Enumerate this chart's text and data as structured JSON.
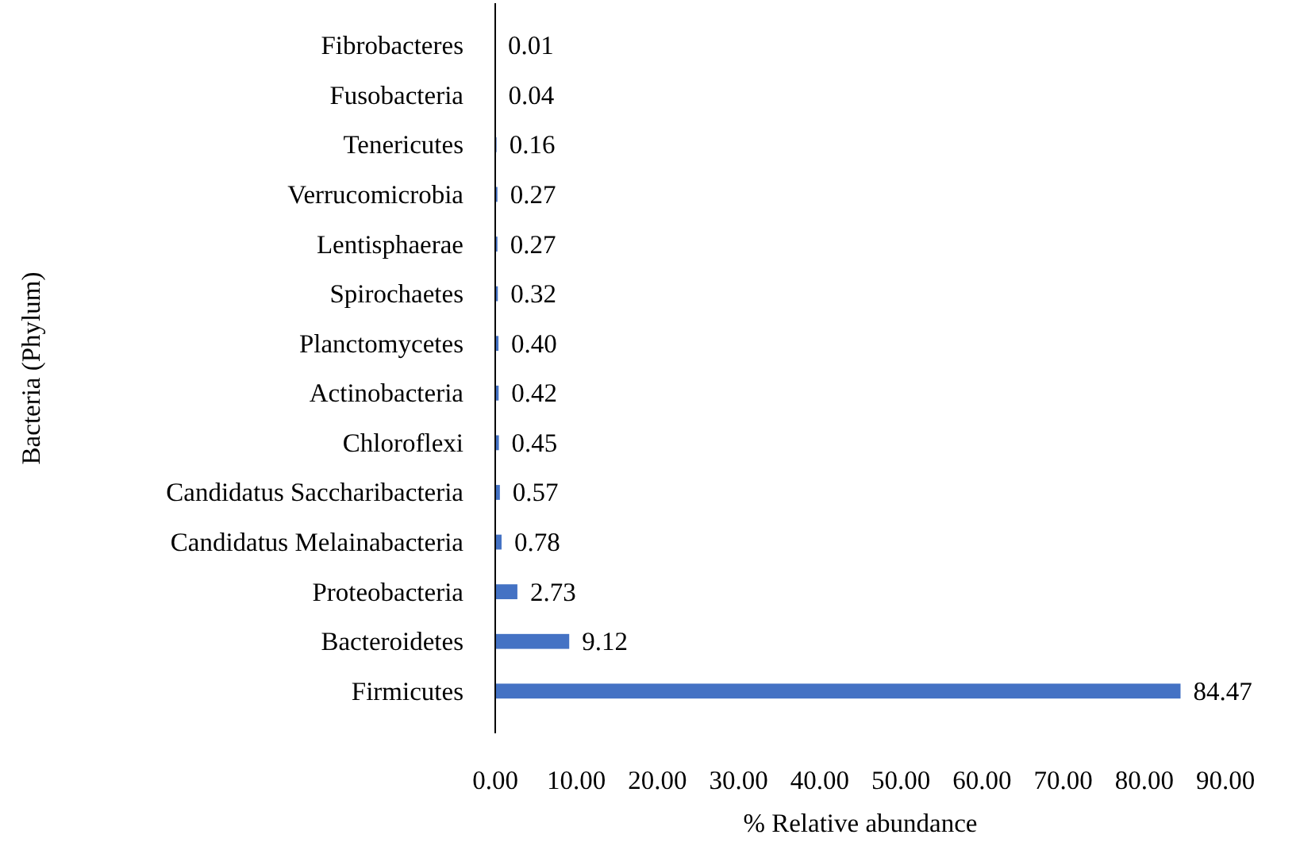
{
  "chart_data": {
    "type": "bar",
    "orientation": "horizontal",
    "xlabel": "% Relative abundance",
    "ylabel": "Bacteria (Phylum)",
    "categories": [
      "Fibrobacteres",
      "Fusobacteria",
      "Tenericutes",
      "Verrucomicrobia",
      "Lentisphaerae",
      "Spirochaetes",
      "Planctomycetes",
      "Actinobacteria",
      "Chloroflexi",
      "Candidatus Saccharibacteria",
      "Candidatus Melainabacteria",
      "Proteobacteria",
      "Bacteroidetes",
      "Firmicutes"
    ],
    "values": [
      0.01,
      0.04,
      0.16,
      0.27,
      0.27,
      0.32,
      0.4,
      0.42,
      0.45,
      0.57,
      0.78,
      2.73,
      9.12,
      84.47
    ],
    "value_labels": [
      "0.01",
      "0.04",
      "0.16",
      "0.27",
      "0.27",
      "0.32",
      "0.40",
      "0.42",
      "0.45",
      "0.57",
      "0.78",
      "2.73",
      "9.12",
      "84.47"
    ],
    "color": "#4472c4",
    "xlim": [
      0,
      90
    ],
    "xticks": [
      {
        "value": 0,
        "label": "0.00"
      },
      {
        "value": 10,
        "label": "10.00"
      },
      {
        "value": 20,
        "label": "20.00"
      },
      {
        "value": 30,
        "label": "30.00"
      },
      {
        "value": 40,
        "label": "40.00"
      },
      {
        "value": 50,
        "label": "50.00"
      },
      {
        "value": 60,
        "label": "60.00"
      },
      {
        "value": 70,
        "label": "70.00"
      },
      {
        "value": 80,
        "label": "80.00"
      },
      {
        "value": 90,
        "label": "90.00"
      }
    ],
    "grid": false
  }
}
